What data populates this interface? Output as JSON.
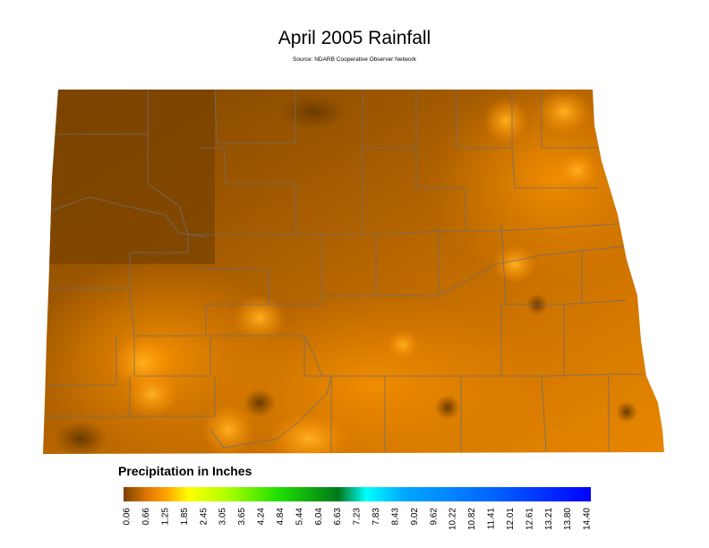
{
  "header": {
    "title": "April 2005 Rainfall",
    "source": "Source: NDARB Cooperative Observer Network"
  },
  "legend": {
    "title": "Precipitation in Inches",
    "ticks": [
      "0.06",
      "0.66",
      "1.25",
      "1.85",
      "2.45",
      "3.05",
      "3.65",
      "4.24",
      "4.84",
      "5.44",
      "6.04",
      "6.63",
      "7.23",
      "7.83",
      "8.43",
      "9.02",
      "9.62",
      "10.22",
      "10.82",
      "11.41",
      "12.01",
      "12.61",
      "13.21",
      "13.80",
      "14.40"
    ]
  }
}
